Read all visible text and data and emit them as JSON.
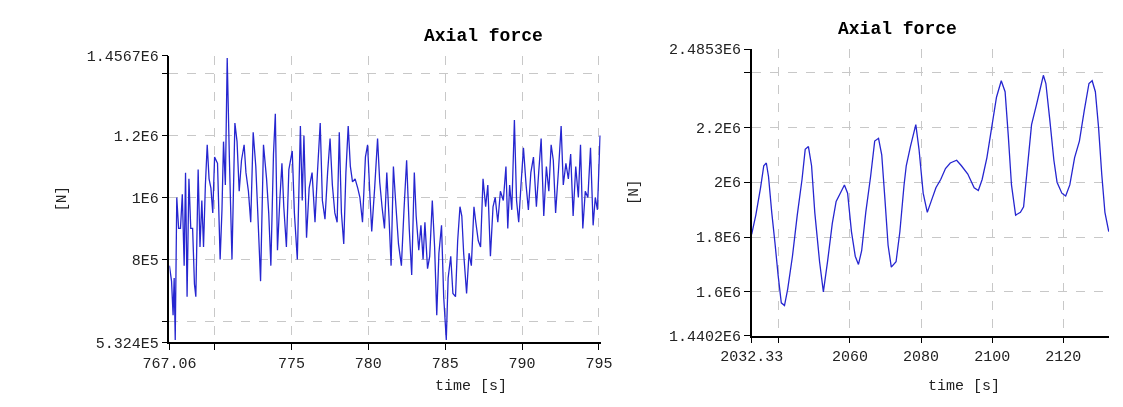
{
  "chart_data": [
    {
      "type": "line",
      "title": "Axial force",
      "xlabel": "time [s]",
      "ylabel": "[N]",
      "grid": true,
      "marker": "none",
      "line_style": "solid",
      "xlim": [
        767.06,
        795.12
      ],
      "ylim": [
        532400,
        1456700
      ],
      "xticks": [
        767.06,
        {
          "value": 770,
          "label": null
        },
        775,
        780,
        785,
        790,
        795
      ],
      "yticks": [
        {
          "value": 532400,
          "label": "5.324E5"
        },
        {
          "value": 600000,
          "label": null
        },
        {
          "value": 800000,
          "label": "8E5"
        },
        {
          "value": 1000000,
          "label": "1E6"
        },
        {
          "value": 1200000,
          "label": "1.2E6"
        },
        {
          "value": 1400000,
          "label": null
        },
        {
          "value": 1456700,
          "label": "1.4567E6"
        }
      ],
      "series": [
        {
          "color": "#2626d0",
          "x": [
            767.06,
            767.2,
            767.3,
            767.37,
            767.44,
            767.54,
            767.66,
            767.78,
            767.9,
            768.02,
            768.11,
            768.21,
            768.33,
            768.45,
            768.57,
            768.69,
            768.78,
            768.93,
            769.05,
            769.17,
            769.28,
            769.4,
            769.52,
            769.64,
            769.76,
            769.88,
            770.0,
            770.19,
            770.36,
            770.48,
            770.58,
            770.7,
            770.82,
            770.96,
            771.13,
            771.32,
            771.46,
            771.6,
            771.75,
            771.92,
            772.04,
            772.2,
            772.35,
            772.51,
            772.68,
            772.8,
            772.99,
            773.18,
            773.38,
            773.52,
            773.66,
            773.83,
            773.95,
            774.09,
            774.24,
            774.38,
            774.5,
            774.67,
            774.83,
            775.05,
            775.19,
            775.38,
            775.58,
            775.7,
            775.81,
            775.98,
            776.15,
            776.34,
            776.53,
            776.7,
            776.87,
            777.01,
            777.18,
            777.35,
            777.51,
            777.66,
            777.82,
            777.97,
            778.11,
            778.25,
            778.4,
            778.54,
            778.69,
            778.83,
            778.97,
            779.14,
            779.31,
            779.45,
            779.62,
            779.81,
            779.95,
            780.1,
            780.22,
            780.41,
            780.6,
            780.74,
            780.89,
            781.05,
            781.2,
            781.34,
            781.48,
            781.63,
            781.77,
            781.96,
            782.15,
            782.32,
            782.49,
            782.66,
            782.82,
            782.99,
            783.11,
            783.28,
            783.42,
            783.56,
            783.68,
            783.85,
            783.99,
            784.16,
            784.31,
            784.45,
            784.59,
            784.76,
            784.9,
            785.07,
            785.19,
            785.36,
            785.5,
            785.67,
            785.81,
            785.96,
            786.08,
            786.2,
            786.39,
            786.55,
            786.7,
            786.87,
            786.99,
            787.15,
            787.3,
            787.46,
            787.63,
            787.77,
            787.94,
            788.11,
            788.25,
            788.42,
            788.59,
            788.78,
            788.95,
            789.07,
            789.19,
            789.33,
            789.5,
            789.64,
            789.78,
            789.93,
            790.09,
            790.26,
            790.41,
            790.57,
            790.74,
            790.93,
            791.08,
            791.24,
            791.41,
            791.58,
            791.74,
            791.89,
            792.03,
            792.18,
            792.37,
            792.54,
            792.68,
            792.85,
            793.01,
            793.16,
            793.32,
            793.49,
            793.66,
            793.8,
            793.95,
            794.11,
            794.28,
            794.45,
            794.62,
            794.76,
            794.9,
            795.07
          ],
          "values": [
            780000,
            730000,
            620000,
            740000,
            540000,
            1000000,
            900000,
            900000,
            1010000,
            780000,
            1080000,
            680000,
            1060000,
            900000,
            900000,
            720000,
            680000,
            1090000,
            840000,
            990000,
            840000,
            1040000,
            1170000,
            1060000,
            1030000,
            950000,
            1130000,
            1110000,
            800000,
            960000,
            1180000,
            1040000,
            1450000,
            1130000,
            800000,
            1240000,
            1180000,
            1020000,
            1120000,
            1170000,
            1080000,
            1020000,
            920000,
            1210000,
            1100000,
            960000,
            730000,
            1170000,
            1060000,
            950000,
            780000,
            1140000,
            1270000,
            830000,
            990000,
            1110000,
            970000,
            840000,
            1090000,
            1150000,
            950000,
            800000,
            1230000,
            990000,
            1200000,
            870000,
            1030000,
            1080000,
            920000,
            1090000,
            1240000,
            990000,
            930000,
            1080000,
            1190000,
            1040000,
            950000,
            920000,
            1210000,
            950000,
            850000,
            1080000,
            1230000,
            1100000,
            1050000,
            1060000,
            1030000,
            1000000,
            920000,
            1130000,
            1170000,
            1010000,
            890000,
            1030000,
            1190000,
            1050000,
            970000,
            900000,
            1080000,
            940000,
            780000,
            1100000,
            990000,
            850000,
            780000,
            960000,
            1120000,
            900000,
            750000,
            1080000,
            940000,
            830000,
            910000,
            800000,
            920000,
            770000,
            810000,
            990000,
            840000,
            620000,
            820000,
            910000,
            680000,
            540000,
            740000,
            810000,
            690000,
            680000,
            860000,
            970000,
            940000,
            820000,
            690000,
            820000,
            780000,
            970000,
            920000,
            860000,
            840000,
            1060000,
            970000,
            1040000,
            810000,
            970000,
            1000000,
            920000,
            1020000,
            990000,
            1100000,
            900000,
            1040000,
            960000,
            1250000,
            990000,
            920000,
            1040000,
            1160000,
            1040000,
            960000,
            1080000,
            1130000,
            970000,
            1080000,
            1190000,
            940000,
            1100000,
            1020000,
            1170000,
            1120000,
            950000,
            1090000,
            1230000,
            1040000,
            1110000,
            1060000,
            1140000,
            940000,
            1100000,
            1000000,
            1170000,
            900000,
            1020000,
            1000000,
            1160000,
            910000,
            1000000,
            960000,
            1200000
          ]
        }
      ]
    },
    {
      "type": "line",
      "title": "Axial force",
      "xlabel": "time [s]",
      "ylabel": "[N]",
      "grid": true,
      "marker": "none",
      "line_style": "solid",
      "xlim": [
        2032.33,
        2132.9
      ],
      "ylim": [
        1440200,
        2485300
      ],
      "xticks": [
        2032.33,
        {
          "value": 2040,
          "label": null
        },
        2060,
        2080,
        2100,
        2120
      ],
      "yticks": [
        {
          "value": 1440200,
          "label": "1.4402E6"
        },
        {
          "value": 1600000,
          "label": "1.6E6"
        },
        {
          "value": 1800000,
          "label": "1.8E6"
        },
        {
          "value": 2000000,
          "label": "2E6"
        },
        {
          "value": 2200000,
          "label": "2.2E6"
        },
        {
          "value": 2400000,
          "label": null
        },
        {
          "value": 2485300,
          "label": "2.4853E6"
        }
      ],
      "series": [
        {
          "color": "#2626d0",
          "x": [
            2032.33,
            2033.5,
            2034.84,
            2035.74,
            2036.46,
            2037.08,
            2037.98,
            2038.88,
            2039.78,
            2040.67,
            2041.57,
            2042.47,
            2043.81,
            2045.16,
            2046.5,
            2047.4,
            2048.3,
            2049.19,
            2050.09,
            2051.44,
            2052.51,
            2053.68,
            2055.02,
            2056.1,
            2057.27,
            2058.43,
            2059.33,
            2060.41,
            2061.48,
            2062.38,
            2063.28,
            2064.44,
            2065.79,
            2066.95,
            2068.03,
            2068.93,
            2069.82,
            2070.72,
            2071.62,
            2072.96,
            2074.04,
            2075.21,
            2075.83,
            2077.0,
            2078.52,
            2079.42,
            2080.59,
            2081.75,
            2082.83,
            2084.18,
            2085.52,
            2086.87,
            2088.21,
            2090.01,
            2091.35,
            2093.15,
            2094.94,
            2096.11,
            2097.18,
            2098.53,
            2099.87,
            2101.22,
            2102.56,
            2103.64,
            2104.54,
            2105.44,
            2106.6,
            2107.95,
            2108.85,
            2109.74,
            2111.09,
            2112.43,
            2113.33,
            2114.41,
            2115.12,
            2116.2,
            2117.37,
            2118.26,
            2119.61,
            2120.69,
            2121.85,
            2123.2,
            2124.55,
            2125.9,
            2127.24,
            2128.14,
            2129.04,
            2129.94,
            2130.83,
            2131.73,
            2132.81
          ],
          "values": [
            1810000,
            1880000,
            1980000,
            2060000,
            2070000,
            2020000,
            1890000,
            1780000,
            1660000,
            1560000,
            1550000,
            1610000,
            1730000,
            1880000,
            2010000,
            2120000,
            2130000,
            2060000,
            1890000,
            1710000,
            1600000,
            1710000,
            1850000,
            1930000,
            1960000,
            1990000,
            1960000,
            1820000,
            1730000,
            1700000,
            1750000,
            1890000,
            2020000,
            2150000,
            2160000,
            2100000,
            1940000,
            1770000,
            1690000,
            1710000,
            1820000,
            1990000,
            2060000,
            2130000,
            2210000,
            2120000,
            1960000,
            1890000,
            1930000,
            1980000,
            2010000,
            2050000,
            2070000,
            2080000,
            2060000,
            2030000,
            1980000,
            1970000,
            2010000,
            2090000,
            2200000,
            2310000,
            2370000,
            2330000,
            2170000,
            1990000,
            1880000,
            1890000,
            1910000,
            2030000,
            2210000,
            2280000,
            2330000,
            2390000,
            2360000,
            2230000,
            2080000,
            2000000,
            1960000,
            1950000,
            1990000,
            2090000,
            2150000,
            2260000,
            2360000,
            2370000,
            2330000,
            2200000,
            2030000,
            1890000,
            1820000
          ]
        }
      ]
    }
  ]
}
